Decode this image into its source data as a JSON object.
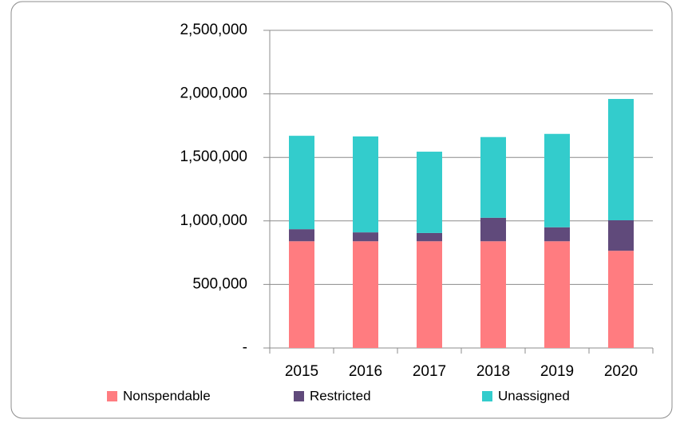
{
  "chart_data": {
    "type": "stacked_bar",
    "categories": [
      "2015",
      "2016",
      "2017",
      "2018",
      "2019",
      "2020"
    ],
    "series": [
      {
        "name": "Nonspendable",
        "color": "#ff7c80",
        "values": [
          840000,
          840000,
          840000,
          840000,
          840000,
          765000
        ]
      },
      {
        "name": "Restricted",
        "color": "#604a7b",
        "values": [
          95000,
          70000,
          65000,
          185000,
          110000,
          240000
        ]
      },
      {
        "name": "Unassigned",
        "color": "#33cccc",
        "values": [
          735000,
          755000,
          640000,
          635000,
          735000,
          955000
        ]
      }
    ],
    "ylim": [
      0,
      2500000
    ],
    "yticks": [
      {
        "value": 0,
        "label": "-"
      },
      {
        "value": 500000,
        "label": "500,000"
      },
      {
        "value": 1000000,
        "label": "1,000,000"
      },
      {
        "value": 1500000,
        "label": "1,500,000"
      },
      {
        "value": 2000000,
        "label": "2,000,000"
      },
      {
        "value": 2500000,
        "label": "2,500,000"
      }
    ],
    "grid": true,
    "legend": "bottom"
  }
}
